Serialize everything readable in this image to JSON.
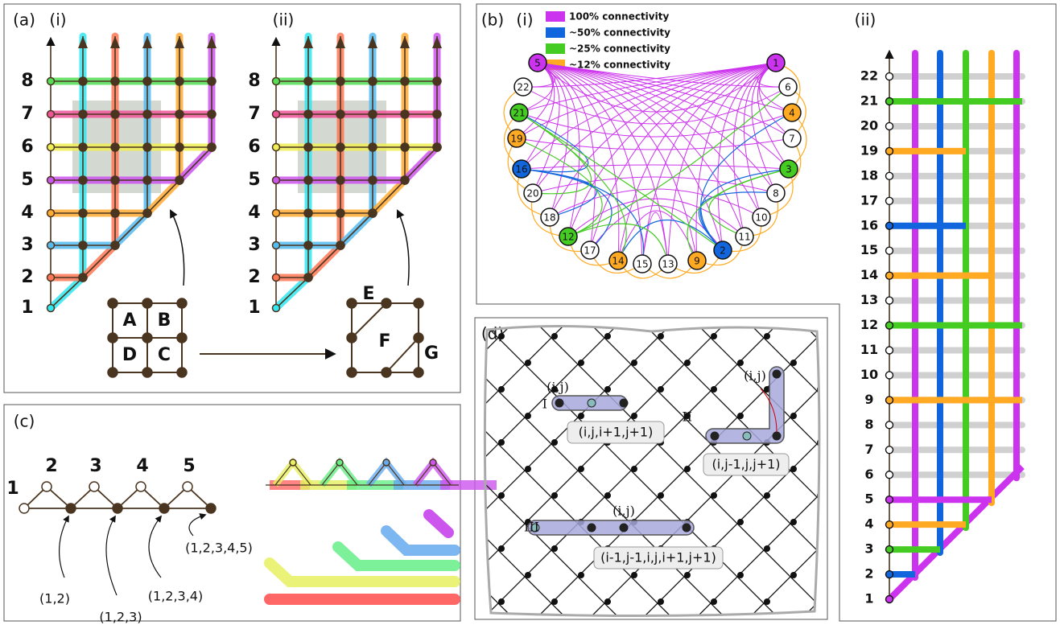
{
  "panel_a": {
    "label": "(a)",
    "sub": [
      "(i)",
      "(ii)"
    ],
    "rows": [
      "1",
      "2",
      "3",
      "4",
      "5",
      "6",
      "7",
      "8"
    ],
    "row_colors": [
      "#33e6f0",
      "#ff7755",
      "#55bbee",
      "#ffaa33",
      "#cc55ee",
      "#eeee55",
      "#ee5599",
      "#55dd55"
    ],
    "cells": [
      "A",
      "B",
      "D",
      "C"
    ],
    "merged": [
      "E",
      "F",
      "G"
    ]
  },
  "panel_b": {
    "label": "(b)",
    "sub": [
      "(i)",
      "(ii)"
    ],
    "legend": [
      {
        "name": "100% connectivity",
        "color": "#cc33ee"
      },
      {
        "name": "~50% connectivity",
        "color": "#1166dd"
      },
      {
        "name": "~25% connectivity",
        "color": "#44cc22"
      },
      {
        "name": "~12% connectivity",
        "color": "#ffaa22"
      }
    ],
    "nodes": [
      {
        "label": "5",
        "color": "#cc33ee"
      },
      {
        "label": "22",
        "color": "#ffffff"
      },
      {
        "label": "21",
        "color": "#44cc22"
      },
      {
        "label": "19",
        "color": "#ffaa22"
      },
      {
        "label": "16",
        "color": "#1166dd"
      },
      {
        "label": "20",
        "color": "#ffffff"
      },
      {
        "label": "18",
        "color": "#ffffff"
      },
      {
        "label": "12",
        "color": "#44cc22"
      },
      {
        "label": "17",
        "color": "#ffffff"
      },
      {
        "label": "14",
        "color": "#ffaa22"
      },
      {
        "label": "15",
        "color": "#ffffff"
      },
      {
        "label": "13",
        "color": "#ffffff"
      },
      {
        "label": "9",
        "color": "#ffaa22"
      },
      {
        "label": "2",
        "color": "#1166dd"
      },
      {
        "label": "11",
        "color": "#ffffff"
      },
      {
        "label": "10",
        "color": "#ffffff"
      },
      {
        "label": "8",
        "color": "#ffffff"
      },
      {
        "label": "3",
        "color": "#44cc22"
      },
      {
        "label": "7",
        "color": "#ffffff"
      },
      {
        "label": "4",
        "color": "#ffaa22"
      },
      {
        "label": "6",
        "color": "#ffffff"
      },
      {
        "label": "1",
        "color": "#cc33ee"
      }
    ],
    "rows": [
      {
        "label": "1",
        "color": "#cc33ee"
      },
      {
        "label": "2",
        "color": "#1166dd"
      },
      {
        "label": "3",
        "color": "#44cc22"
      },
      {
        "label": "4",
        "color": "#ffaa22"
      },
      {
        "label": "5",
        "color": "#cc33ee"
      },
      {
        "label": "6",
        "color": "#ffffff"
      },
      {
        "label": "7",
        "color": "#ffffff"
      },
      {
        "label": "8",
        "color": "#ffffff"
      },
      {
        "label": "9",
        "color": "#ffaa22"
      },
      {
        "label": "10",
        "color": "#ffffff"
      },
      {
        "label": "11",
        "color": "#ffffff"
      },
      {
        "label": "12",
        "color": "#44cc22"
      },
      {
        "label": "13",
        "color": "#ffffff"
      },
      {
        "label": "14",
        "color": "#ffaa22"
      },
      {
        "label": "15",
        "color": "#ffffff"
      },
      {
        "label": "16",
        "color": "#1166dd"
      },
      {
        "label": "17",
        "color": "#ffffff"
      },
      {
        "label": "18",
        "color": "#ffffff"
      },
      {
        "label": "19",
        "color": "#ffaa22"
      },
      {
        "label": "20",
        "color": "#ffffff"
      },
      {
        "label": "21",
        "color": "#44cc22"
      },
      {
        "label": "22",
        "color": "#ffffff"
      }
    ]
  },
  "panel_c": {
    "label": "(c)",
    "nodes": [
      "1",
      "2",
      "3",
      "4",
      "5"
    ],
    "annotations": [
      "(1,2)",
      "(1,2,3)",
      "(1,2,3,4)",
      "(1,2,3,4,5)"
    ]
  },
  "panel_d": {
    "label": "(d)",
    "site": "(i,j)",
    "cases": [
      {
        "name": "I",
        "label": "(i,j,i+1,j+1)"
      },
      {
        "name": "II",
        "label": "(i,j-1,j,j+1)"
      },
      {
        "name": "III",
        "label": "(i-1,j-1,i,j,i+1,j+1)"
      }
    ]
  }
}
